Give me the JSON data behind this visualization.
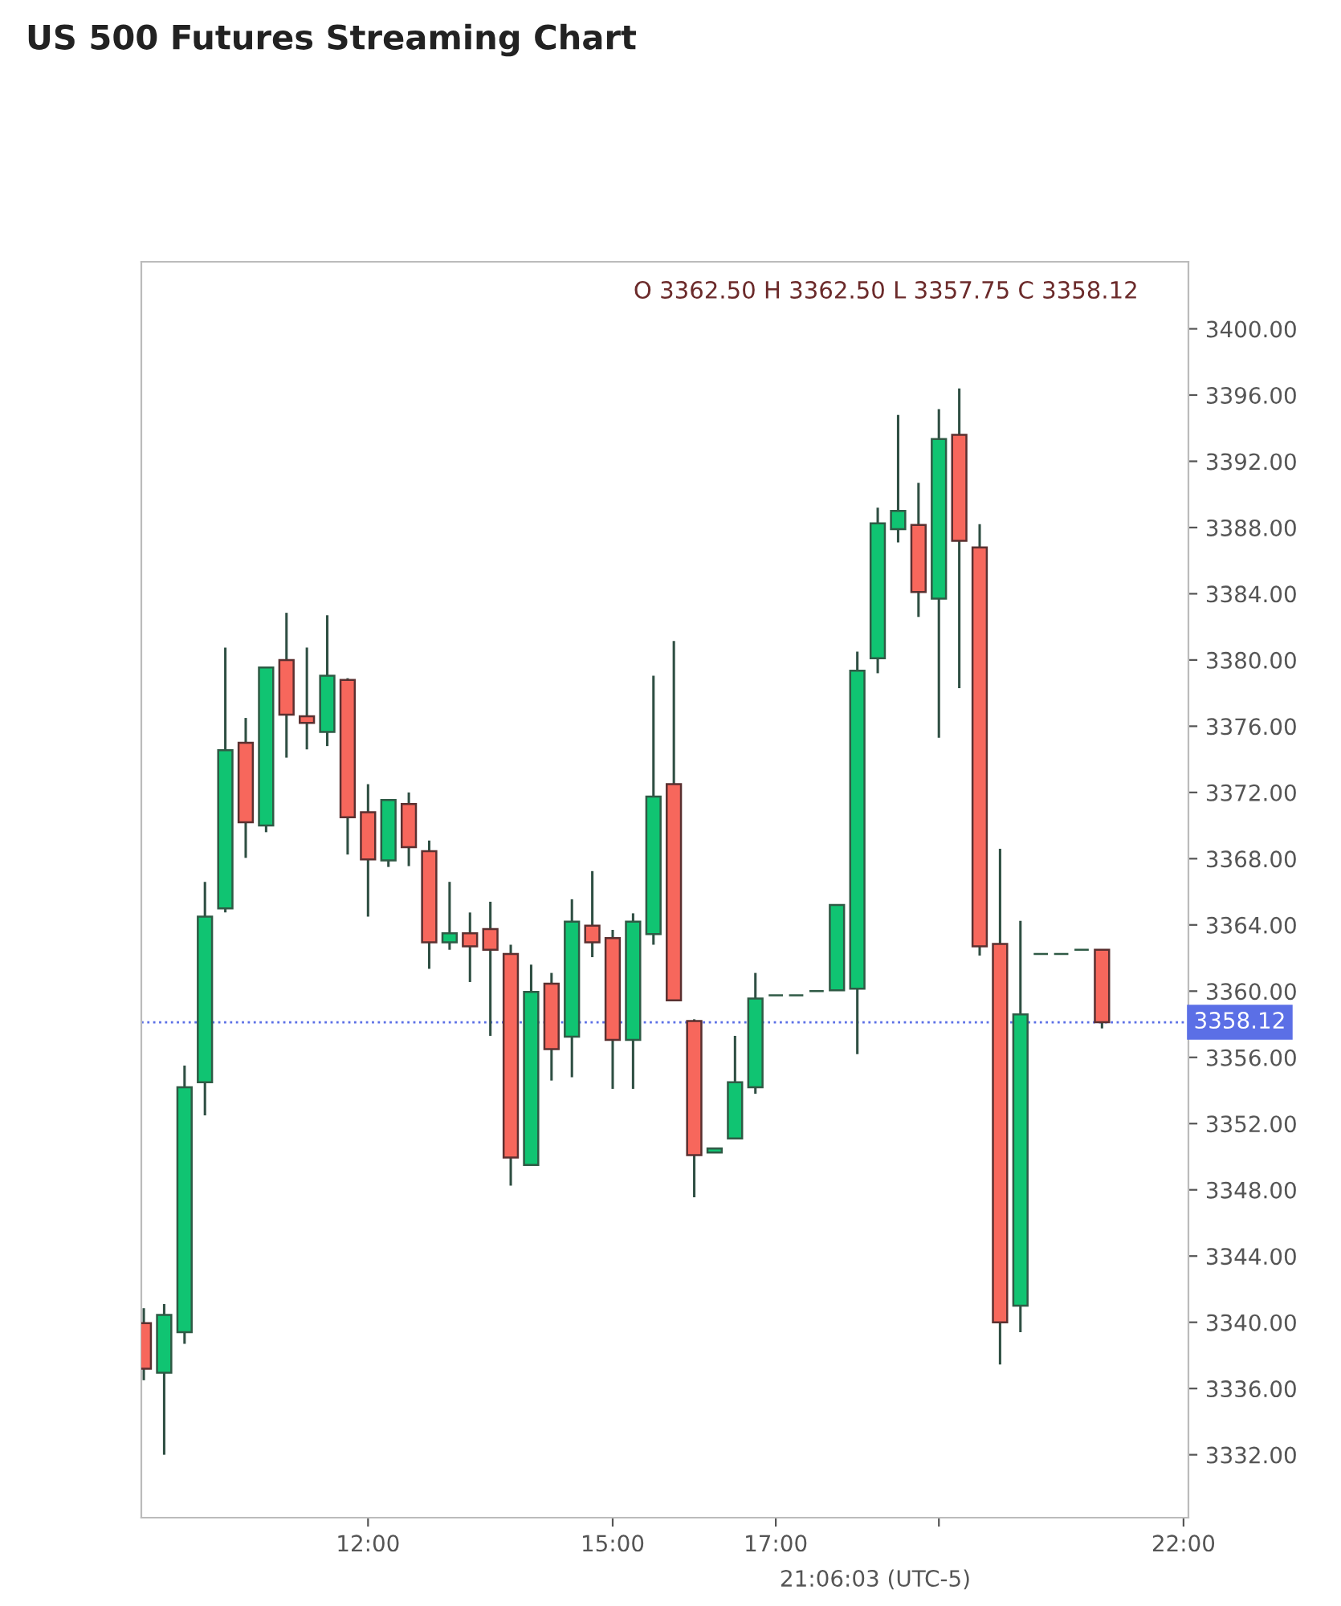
{
  "chart_data": {
    "type": "candlestick",
    "title": "US 500 Futures Streaming Chart",
    "annotations": [
      "O 3362.50 H 3362.50 L 3357.75 C 3358.12",
      "21:06:03 (UTC-5)"
    ],
    "x": [
      9.25,
      9.5,
      9.75,
      10,
      10.25,
      10.5,
      10.75,
      11,
      11.25,
      11.5,
      11.75,
      12,
      12.25,
      12.5,
      12.75,
      13,
      13.25,
      13.5,
      13.75,
      14,
      14.25,
      14.5,
      14.75,
      15,
      15.25,
      15.5,
      15.75,
      16,
      16.25,
      16.5,
      16.75,
      17,
      17.25,
      17.5,
      17.75,
      18,
      18.25,
      18.5,
      18.75,
      19,
      19.25,
      19.5,
      19.75,
      20,
      20.25,
      20.5,
      20.75,
      21
    ],
    "ohlc": [
      [
        3339.95,
        3340.85,
        3336.5,
        3337.2
      ],
      [
        3336.95,
        3341.1,
        3332.0,
        3340.45
      ],
      [
        3339.4,
        3355.5,
        3338.7,
        3354.2
      ],
      [
        3354.5,
        3366.6,
        3352.5,
        3364.5
      ],
      [
        3365.0,
        3380.75,
        3364.75,
        3374.55
      ],
      [
        3375.0,
        3376.5,
        3368.05,
        3370.2
      ],
      [
        3370.0,
        3379.6,
        3369.6,
        3379.55
      ],
      [
        3380.0,
        3382.85,
        3374.1,
        3376.7
      ],
      [
        3376.6,
        3380.75,
        3374.6,
        3376.2
      ],
      [
        3375.65,
        3382.7,
        3374.8,
        3379.05
      ],
      [
        3378.8,
        3378.9,
        3368.25,
        3370.5
      ],
      [
        3370.8,
        3372.5,
        3364.5,
        3367.95
      ],
      [
        3367.9,
        3371.55,
        3367.5,
        3371.55
      ],
      [
        3371.3,
        3372.0,
        3367.55,
        3368.7
      ],
      [
        3368.45,
        3369.1,
        3361.35,
        3362.95
      ],
      [
        3362.95,
        3366.6,
        3362.5,
        3363.5
      ],
      [
        3363.5,
        3364.75,
        3360.55,
        3362.7
      ],
      [
        3363.75,
        3365.4,
        3357.3,
        3362.5
      ],
      [
        3362.25,
        3362.8,
        3348.25,
        3349.95
      ],
      [
        3349.5,
        3361.6,
        3349.5,
        3359.95
      ],
      [
        3360.45,
        3361.1,
        3354.6,
        3356.5
      ],
      [
        3357.25,
        3365.55,
        3354.8,
        3364.2
      ],
      [
        3363.95,
        3367.25,
        3362.05,
        3362.95
      ],
      [
        3363.2,
        3363.7,
        3354.1,
        3357.05
      ],
      [
        3357.05,
        3364.7,
        3354.1,
        3364.2
      ],
      [
        3363.45,
        3379.05,
        3362.8,
        3371.75
      ],
      [
        3372.5,
        3381.15,
        3359.45,
        3359.45
      ],
      [
        3358.2,
        3358.3,
        3347.55,
        3350.1
      ],
      [
        3350.25,
        3350.5,
        3350.25,
        3350.5
      ],
      [
        3351.1,
        3357.3,
        3351.1,
        3354.5
      ],
      [
        3354.2,
        3361.1,
        3353.8,
        3359.55
      ],
      [
        3359.75,
        3359.75,
        3359.75,
        3359.75
      ],
      [
        3359.75,
        3359.75,
        3359.75,
        3359.75
      ],
      [
        3360.0,
        3360.0,
        3360.0,
        3360.0
      ],
      [
        3360.05,
        3365.2,
        3360.05,
        3365.2
      ],
      [
        3360.15,
        3380.5,
        3356.2,
        3379.35
      ],
      [
        3380.1,
        3389.2,
        3379.2,
        3388.25
      ],
      [
        3387.9,
        3394.8,
        3387.1,
        3389.0
      ],
      [
        3388.15,
        3390.7,
        3382.6,
        3384.1
      ],
      [
        3383.7,
        3395.15,
        3375.3,
        3393.35
      ],
      [
        3393.6,
        3396.4,
        3378.3,
        3387.2
      ],
      [
        3386.8,
        3388.2,
        3362.15,
        3362.7
      ],
      [
        3362.85,
        3368.6,
        3337.45,
        3340.0
      ],
      [
        3341.0,
        3364.25,
        3339.4,
        3358.6
      ],
      [
        3362.25,
        3362.25,
        3362.25,
        3362.25
      ],
      [
        3362.25,
        3362.25,
        3362.25,
        3362.25
      ],
      [
        3362.5,
        3362.5,
        3362.5,
        3362.5
      ],
      [
        3362.5,
        3362.5,
        3357.75,
        3358.12
      ]
    ],
    "colors": [
      "#f7675c",
      "#10c472",
      "#10c472",
      "#10c472",
      "#10c472",
      "#f7675c",
      "#10c472",
      "#f7675c",
      "#f7675c",
      "#10c472",
      "#f7675c",
      "#f7675c",
      "#10c472",
      "#f7675c",
      "#f7675c",
      "#10c472",
      "#f7675c",
      "#f7675c",
      "#f7675c",
      "#10c472",
      "#f7675c",
      "#10c472",
      "#f7675c",
      "#f7675c",
      "#10c472",
      "#10c472",
      "#f7675c",
      "#f7675c",
      "#10c472",
      "#10c472",
      "#10c472",
      "#2f5a45",
      "#2f5a45",
      "#2f5a45",
      "#10c472",
      "#10c472",
      "#10c472",
      "#10c472",
      "#f7675c",
      "#10c472",
      "#f7675c",
      "#f7675c",
      "#f7675c",
      "#10c472",
      "#2f5a45",
      "#2f5a45",
      "#2f5a45",
      "#f7675c"
    ],
    "xlim": [
      9.22,
      22.06
    ],
    "xticks": [
      {
        "value": 12,
        "label": "12:00"
      },
      {
        "value": 15,
        "label": "15:00"
      },
      {
        "value": 17,
        "label": "17:00"
      },
      {
        "value": 19,
        "label": null
      },
      {
        "value": 22,
        "label": "22:00"
      }
    ],
    "ylim": [
      3328.2,
      3404.05
    ],
    "yticks": [
      {
        "value": 3332,
        "label": "3332.00"
      },
      {
        "value": 3336,
        "label": "3336.00"
      },
      {
        "value": 3340,
        "label": "3340.00"
      },
      {
        "value": 3344,
        "label": "3344.00"
      },
      {
        "value": 3348,
        "label": "3348.00"
      },
      {
        "value": 3352,
        "label": "3352.00"
      },
      {
        "value": 3356,
        "label": "3356.00"
      },
      {
        "value": 3360,
        "label": "3360.00"
      },
      {
        "value": 3364,
        "label": "3364.00"
      },
      {
        "value": 3368,
        "label": "3368.00"
      },
      {
        "value": 3372,
        "label": "3372.00"
      },
      {
        "value": 3376,
        "label": "3376.00"
      },
      {
        "value": 3380,
        "label": "3380.00"
      },
      {
        "value": 3384,
        "label": "3384.00"
      },
      {
        "value": 3388,
        "label": "3388.00"
      },
      {
        "value": 3392,
        "label": "3392.00"
      },
      {
        "value": 3396,
        "label": "3396.00"
      },
      {
        "value": 3400,
        "label": "3400.00"
      }
    ],
    "ref_lines": [
      {
        "axis": "y",
        "value": 3358.12,
        "label": "3358.12",
        "color": "#5b6fe6",
        "line_style": "dotted"
      }
    ],
    "grid": false,
    "legend": false
  }
}
